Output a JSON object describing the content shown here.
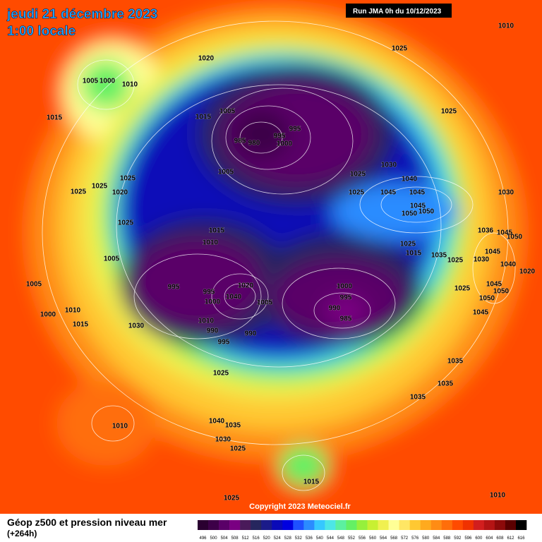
{
  "header": {
    "title": "jeudi 21 décembre 2023",
    "subtitle": "1:00 locale",
    "run": "Run JMA 0h du 10/12/2023"
  },
  "isobar_labels": [
    1010,
    1025,
    1020,
    1005,
    1000,
    1010,
    1015,
    1015,
    1005,
    1025,
    995,
    985,
    980,
    995,
    1000,
    1005,
    1025,
    1030,
    1040,
    1025,
    1025,
    1025,
    1020,
    1025,
    1045,
    1045,
    1030,
    1045,
    1050,
    1050,
    1025,
    1015,
    1010,
    1036,
    1045,
    1050,
    1025,
    1015,
    1035,
    1025,
    1005,
    1045,
    1030,
    1040,
    1020,
    1005,
    1025,
    1045,
    1050,
    1000,
    1020,
    995,
    995,
    1000,
    1040,
    1005,
    995,
    990,
    985,
    1050,
    1045,
    1000,
    1010,
    1015,
    1010,
    990,
    990,
    1030,
    995,
    1035,
    1025,
    1035,
    1035,
    1010,
    1040,
    1035,
    1030,
    1025,
    1015,
    1025,
    1010
  ],
  "copyright": "Copyright 2023 Meteociel.fr",
  "footer": {
    "title": "Géop z500 et pression niveau mer",
    "lead": "(+264h)"
  },
  "legend": {
    "values": [
      496,
      500,
      504,
      508,
      512,
      516,
      520,
      524,
      528,
      532,
      536,
      540,
      544,
      548,
      552,
      556,
      560,
      564,
      568,
      572,
      576,
      580,
      584,
      588,
      592,
      596,
      600,
      604,
      608,
      612,
      616
    ],
    "colors": [
      "#2a0030",
      "#3d0048",
      "#5a0068",
      "#7a0082",
      "#4a1a5a",
      "#26265e",
      "#1b1b8a",
      "#0a0ab8",
      "#0000e0",
      "#1e50ff",
      "#2b8cff",
      "#36c8ff",
      "#4de6e6",
      "#5cf0a0",
      "#64f064",
      "#96f03c",
      "#c8f032",
      "#f0f050",
      "#ffff96",
      "#ffe664",
      "#ffc832",
      "#ffaa1e",
      "#ff8c14",
      "#ff6e0a",
      "#ff4b00",
      "#f03200",
      "#d21e1e",
      "#b41414",
      "#8c0a0a",
      "#5a0000",
      "#000000"
    ]
  }
}
